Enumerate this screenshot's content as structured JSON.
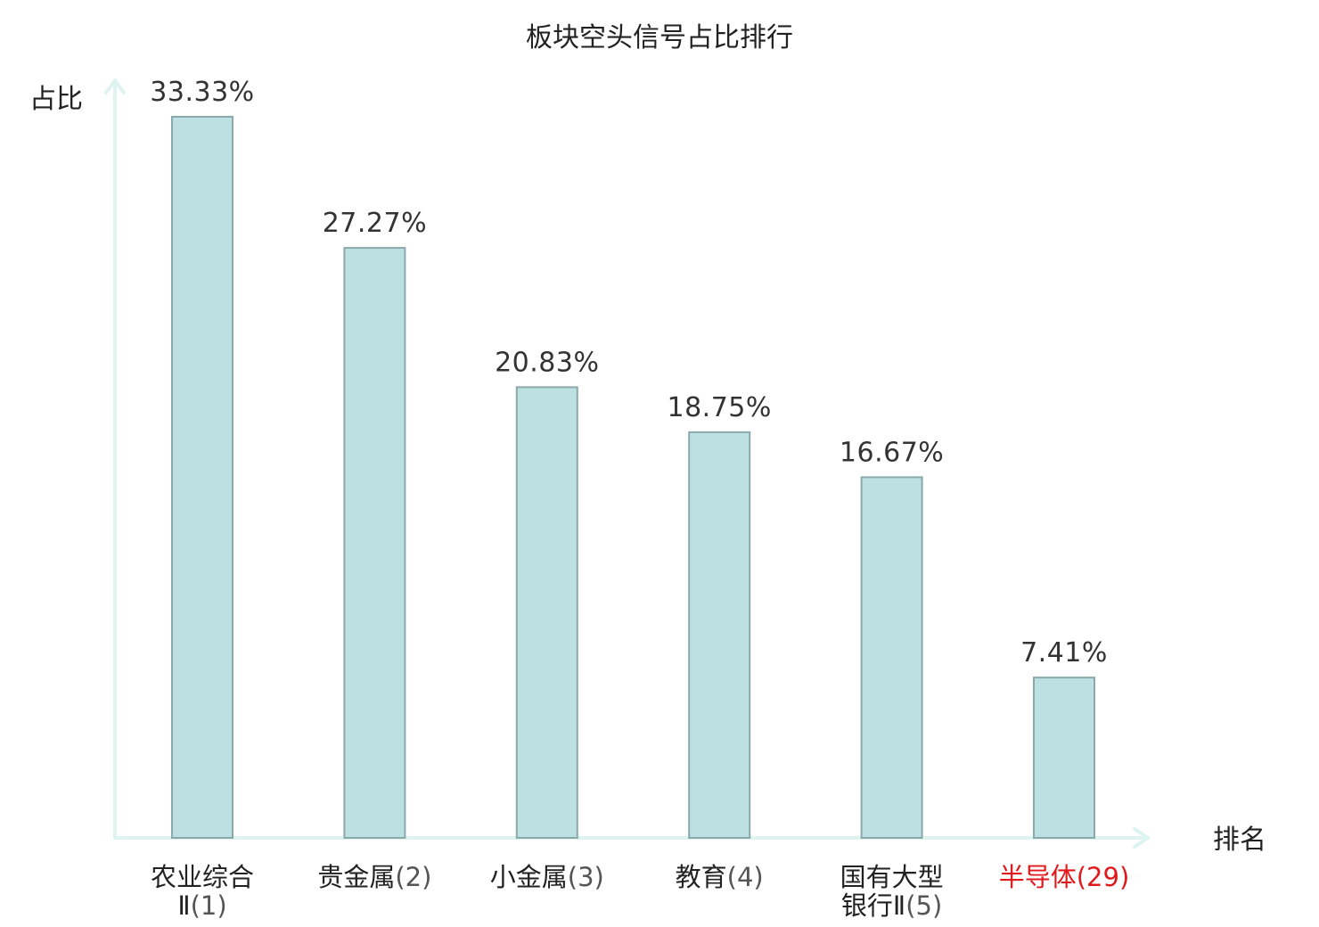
{
  "chart_data": {
    "type": "bar",
    "title": "板块空头信号占比排行",
    "ylabel": "占比",
    "xlabel": "排名",
    "ylim": [
      0,
      35
    ],
    "grid": false,
    "legend": "none",
    "categories": [
      {
        "name": [
          "农业综合",
          "Ⅱ"
        ],
        "rank": "(1)",
        "highlight": false
      },
      {
        "name": [
          "贵金属"
        ],
        "rank": "(2)",
        "highlight": false
      },
      {
        "name": [
          "小金属"
        ],
        "rank": "(3)",
        "highlight": false
      },
      {
        "name": [
          "教育"
        ],
        "rank": "(4)",
        "highlight": false
      },
      {
        "name": [
          "国有大型",
          "银行Ⅱ"
        ],
        "rank": "(5)",
        "highlight": false
      },
      {
        "name": [
          "半导体"
        ],
        "rank": "(29)",
        "highlight": true
      }
    ],
    "values": [
      33.33,
      27.27,
      20.83,
      18.75,
      16.67,
      7.41
    ],
    "value_labels": [
      "33.33%",
      "27.27%",
      "20.83%",
      "18.75%",
      "16.67%",
      "7.41%"
    ],
    "colors": {
      "bar_fill": "#bde0e3",
      "bar_stroke": "#8aa9ab",
      "axis": "#dff3f1",
      "highlight": "#e0191c"
    }
  }
}
